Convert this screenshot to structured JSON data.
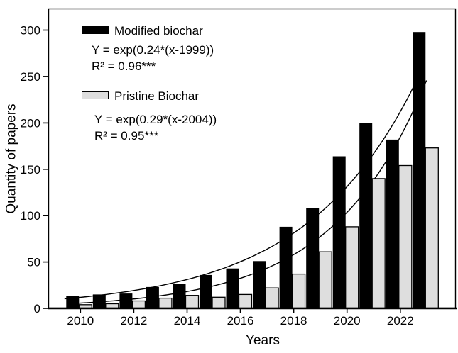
{
  "chart_data": {
    "type": "bar",
    "title": "",
    "xlabel": "Years",
    "ylabel": "Quantity of papers",
    "grid": false,
    "legend_position": "upper-left",
    "xlim": [
      2008.8,
      2024.1
    ],
    "ylim": [
      0,
      323
    ],
    "y_ticks": [
      0,
      50,
      100,
      150,
      200,
      250,
      300
    ],
    "x_tick_labels": [
      "2010",
      "2012",
      "2014",
      "2016",
      "2018",
      "2020",
      "2022"
    ],
    "categories": [
      2010,
      2011,
      2012,
      2013,
      2014,
      2015,
      2016,
      2017,
      2018,
      2019,
      2020,
      2021,
      2022,
      2023
    ],
    "series": [
      {
        "key": "modified",
        "name": "Modified biochar",
        "color": "#000000",
        "values": [
          13,
          15,
          16,
          23,
          26,
          36,
          43,
          51,
          88,
          108,
          164,
          200,
          182,
          298
        ],
        "fit": {
          "equation": "Y = exp(0.24*(x-1999))",
          "r2": "R² = 0.96***",
          "a": 0.24,
          "x0": 1999
        }
      },
      {
        "key": "pristine",
        "name": "Pristine Biochar",
        "color": "#dedede",
        "values": [
          4,
          5,
          8,
          11,
          14,
          12,
          15,
          22,
          37,
          61,
          88,
          140,
          154,
          173
        ],
        "fit": {
          "equation": "Y = exp(0.29*(x-2004))",
          "r2": "R² = 0.95***",
          "a": 0.29,
          "x0": 2004
        }
      }
    ]
  }
}
